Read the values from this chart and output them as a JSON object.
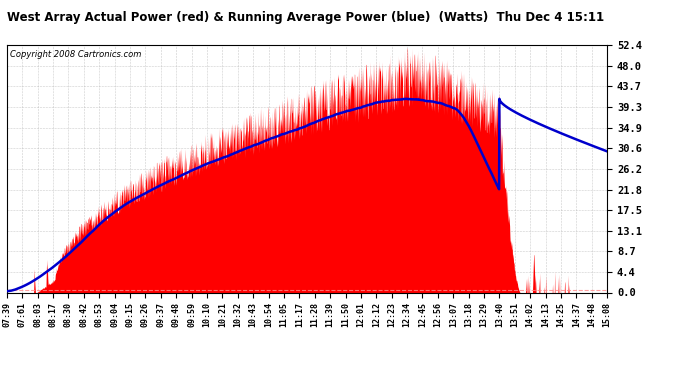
{
  "title": "West Array Actual Power (red) & Running Average Power (blue)  (Watts)  Thu Dec 4 15:11",
  "copyright": "Copyright 2008 Cartronics.com",
  "ylabel_right_ticks": [
    0.0,
    4.4,
    8.7,
    13.1,
    17.5,
    21.8,
    26.2,
    30.6,
    34.9,
    39.3,
    43.7,
    48.0,
    52.4
  ],
  "ylim": [
    0.0,
    52.4
  ],
  "bg_color": "#ffffff",
  "plot_bg_color": "#ffffff",
  "grid_color": "#aaaaaa",
  "actual_color": "#ff0000",
  "avg_color": "#0000cc",
  "dashed_line_color": "#ff8888",
  "xtick_labels": [
    "07:39",
    "07:61",
    "08:03",
    "08:17",
    "08:30",
    "08:42",
    "08:53",
    "09:04",
    "09:15",
    "09:26",
    "09:37",
    "09:48",
    "09:59",
    "10:10",
    "10:21",
    "10:32",
    "10:43",
    "10:54",
    "11:05",
    "11:17",
    "11:28",
    "11:39",
    "11:50",
    "12:01",
    "12:12",
    "12:23",
    "12:34",
    "12:45",
    "12:56",
    "13:07",
    "13:18",
    "13:29",
    "13:40",
    "13:51",
    "14:02",
    "14:13",
    "14:25",
    "14:37",
    "14:48",
    "15:08"
  ]
}
